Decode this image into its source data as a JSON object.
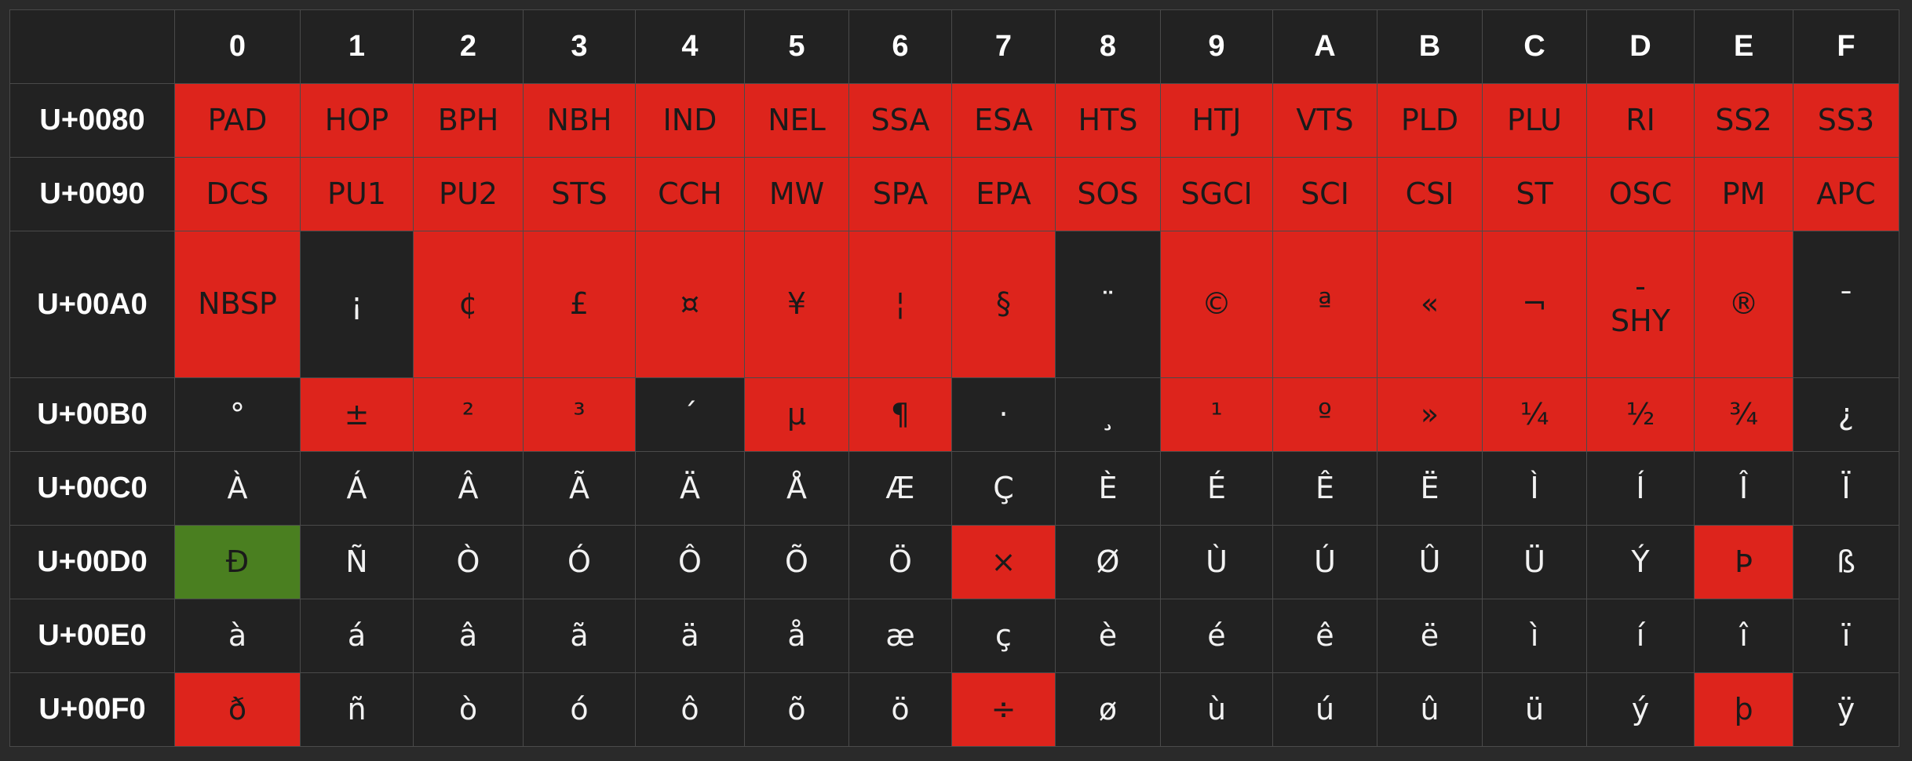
{
  "colors": {
    "background": "#2a2a2a",
    "cell_dark": "#222222",
    "highlight_red": "#dd241c",
    "highlight_green": "#4a7f20",
    "grid_line": "#4a4a4a",
    "text_light": "#f2f2f2",
    "text_dark": "#1a1a1a"
  },
  "column_headers": [
    "0",
    "1",
    "2",
    "3",
    "4",
    "5",
    "6",
    "7",
    "8",
    "9",
    "A",
    "B",
    "C",
    "D",
    "E",
    "F"
  ],
  "rows": [
    {
      "label": "U+0080",
      "cells": [
        {
          "text": "PAD",
          "color": "red"
        },
        {
          "text": "HOP",
          "color": "red"
        },
        {
          "text": "BPH",
          "color": "red"
        },
        {
          "text": "NBH",
          "color": "red"
        },
        {
          "text": "IND",
          "color": "red"
        },
        {
          "text": "NEL",
          "color": "red"
        },
        {
          "text": "SSA",
          "color": "red"
        },
        {
          "text": "ESA",
          "color": "red"
        },
        {
          "text": "HTS",
          "color": "red"
        },
        {
          "text": "HTJ",
          "color": "red"
        },
        {
          "text": "VTS",
          "color": "red"
        },
        {
          "text": "PLD",
          "color": "red"
        },
        {
          "text": "PLU",
          "color": "red"
        },
        {
          "text": "RI",
          "color": "red"
        },
        {
          "text": "SS2",
          "color": "red"
        },
        {
          "text": "SS3",
          "color": "red"
        }
      ]
    },
    {
      "label": "U+0090",
      "cells": [
        {
          "text": "DCS",
          "color": "red"
        },
        {
          "text": "PU1",
          "color": "red"
        },
        {
          "text": "PU2",
          "color": "red"
        },
        {
          "text": "STS",
          "color": "red"
        },
        {
          "text": "CCH",
          "color": "red"
        },
        {
          "text": "MW",
          "color": "red"
        },
        {
          "text": "SPA",
          "color": "red"
        },
        {
          "text": "EPA",
          "color": "red"
        },
        {
          "text": "SOS",
          "color": "red"
        },
        {
          "text": "SGCI",
          "color": "red"
        },
        {
          "text": "SCI",
          "color": "red"
        },
        {
          "text": "CSI",
          "color": "red"
        },
        {
          "text": "ST",
          "color": "red"
        },
        {
          "text": "OSC",
          "color": "red"
        },
        {
          "text": "PM",
          "color": "red"
        },
        {
          "text": "APC",
          "color": "red"
        }
      ]
    },
    {
      "label": "U+00A0",
      "cells": [
        {
          "text": "NBSP",
          "color": "red"
        },
        {
          "text": "¡",
          "color": "dark"
        },
        {
          "text": "¢",
          "color": "red"
        },
        {
          "text": "£",
          "color": "red"
        },
        {
          "text": "¤",
          "color": "red"
        },
        {
          "text": "¥",
          "color": "red"
        },
        {
          "text": "¦",
          "color": "red"
        },
        {
          "text": "§",
          "color": "red"
        },
        {
          "text": "¨",
          "color": "dark"
        },
        {
          "text": "©",
          "color": "red"
        },
        {
          "text": "ª",
          "color": "red"
        },
        {
          "text": "«",
          "color": "red"
        },
        {
          "text": "¬",
          "color": "red"
        },
        {
          "text": "-",
          "sub": "SHY",
          "color": "red"
        },
        {
          "text": "®",
          "color": "red"
        },
        {
          "text": "¯",
          "color": "dark"
        }
      ]
    },
    {
      "label": "U+00B0",
      "cells": [
        {
          "text": "°",
          "color": "dark"
        },
        {
          "text": "±",
          "color": "red"
        },
        {
          "text": "²",
          "color": "red"
        },
        {
          "text": "³",
          "color": "red"
        },
        {
          "text": "´",
          "color": "dark"
        },
        {
          "text": "µ",
          "color": "red"
        },
        {
          "text": "¶",
          "color": "red"
        },
        {
          "text": "·",
          "color": "dark"
        },
        {
          "text": "¸",
          "color": "dark"
        },
        {
          "text": "¹",
          "color": "red"
        },
        {
          "text": "º",
          "color": "red"
        },
        {
          "text": "»",
          "color": "red"
        },
        {
          "text": "¼",
          "color": "red"
        },
        {
          "text": "½",
          "color": "red"
        },
        {
          "text": "¾",
          "color": "red"
        },
        {
          "text": "¿",
          "color": "dark"
        }
      ]
    },
    {
      "label": "U+00C0",
      "cells": [
        {
          "text": "À",
          "color": "dark"
        },
        {
          "text": "Á",
          "color": "dark"
        },
        {
          "text": "Â",
          "color": "dark"
        },
        {
          "text": "Ã",
          "color": "dark"
        },
        {
          "text": "Ä",
          "color": "dark"
        },
        {
          "text": "Å",
          "color": "dark"
        },
        {
          "text": "Æ",
          "color": "dark"
        },
        {
          "text": "Ç",
          "color": "dark"
        },
        {
          "text": "È",
          "color": "dark"
        },
        {
          "text": "É",
          "color": "dark"
        },
        {
          "text": "Ê",
          "color": "dark"
        },
        {
          "text": "Ë",
          "color": "dark"
        },
        {
          "text": "Ì",
          "color": "dark"
        },
        {
          "text": "Í",
          "color": "dark"
        },
        {
          "text": "Î",
          "color": "dark"
        },
        {
          "text": "Ï",
          "color": "dark"
        }
      ]
    },
    {
      "label": "U+00D0",
      "cells": [
        {
          "text": "Ð",
          "color": "green"
        },
        {
          "text": "Ñ",
          "color": "dark"
        },
        {
          "text": "Ò",
          "color": "dark"
        },
        {
          "text": "Ó",
          "color": "dark"
        },
        {
          "text": "Ô",
          "color": "dark"
        },
        {
          "text": "Õ",
          "color": "dark"
        },
        {
          "text": "Ö",
          "color": "dark"
        },
        {
          "text": "×",
          "color": "red"
        },
        {
          "text": "Ø",
          "color": "dark"
        },
        {
          "text": "Ù",
          "color": "dark"
        },
        {
          "text": "Ú",
          "color": "dark"
        },
        {
          "text": "Û",
          "color": "dark"
        },
        {
          "text": "Ü",
          "color": "dark"
        },
        {
          "text": "Ý",
          "color": "dark"
        },
        {
          "text": "Þ",
          "color": "red"
        },
        {
          "text": "ß",
          "color": "dark"
        }
      ]
    },
    {
      "label": "U+00E0",
      "cells": [
        {
          "text": "à",
          "color": "dark"
        },
        {
          "text": "á",
          "color": "dark"
        },
        {
          "text": "â",
          "color": "dark"
        },
        {
          "text": "ã",
          "color": "dark"
        },
        {
          "text": "ä",
          "color": "dark"
        },
        {
          "text": "å",
          "color": "dark"
        },
        {
          "text": "æ",
          "color": "dark"
        },
        {
          "text": "ç",
          "color": "dark"
        },
        {
          "text": "è",
          "color": "dark"
        },
        {
          "text": "é",
          "color": "dark"
        },
        {
          "text": "ê",
          "color": "dark"
        },
        {
          "text": "ë",
          "color": "dark"
        },
        {
          "text": "ì",
          "color": "dark"
        },
        {
          "text": "í",
          "color": "dark"
        },
        {
          "text": "î",
          "color": "dark"
        },
        {
          "text": "ï",
          "color": "dark"
        }
      ]
    },
    {
      "label": "U+00F0",
      "cells": [
        {
          "text": "ð",
          "color": "red"
        },
        {
          "text": "ñ",
          "color": "dark"
        },
        {
          "text": "ò",
          "color": "dark"
        },
        {
          "text": "ó",
          "color": "dark"
        },
        {
          "text": "ô",
          "color": "dark"
        },
        {
          "text": "õ",
          "color": "dark"
        },
        {
          "text": "ö",
          "color": "dark"
        },
        {
          "text": "÷",
          "color": "red"
        },
        {
          "text": "ø",
          "color": "dark"
        },
        {
          "text": "ù",
          "color": "dark"
        },
        {
          "text": "ú",
          "color": "dark"
        },
        {
          "text": "û",
          "color": "dark"
        },
        {
          "text": "ü",
          "color": "dark"
        },
        {
          "text": "ý",
          "color": "dark"
        },
        {
          "text": "þ",
          "color": "red"
        },
        {
          "text": "ÿ",
          "color": "dark"
        }
      ]
    }
  ]
}
